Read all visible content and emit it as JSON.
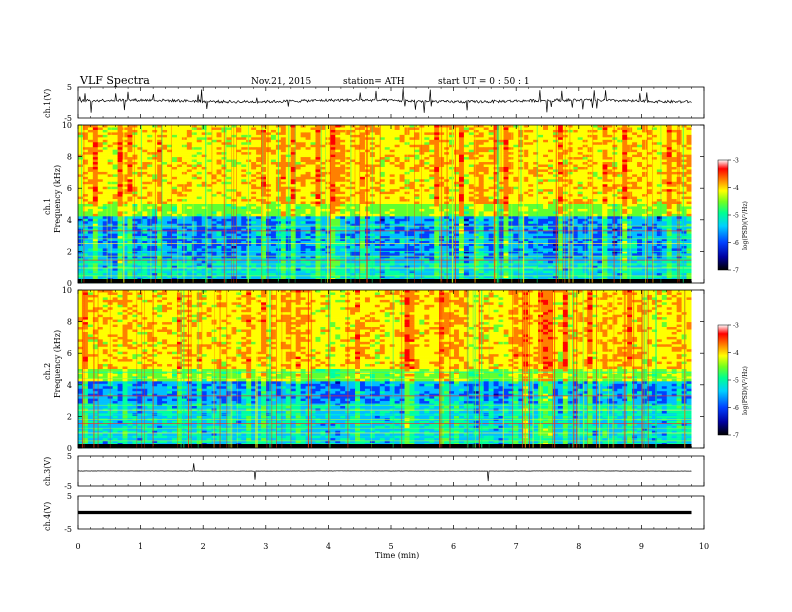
{
  "header": {
    "title": "VLF  Spectra",
    "date": "Nov.21, 2015",
    "station": "station= ATH",
    "start": "start  UT =   0 : 50 : 1"
  },
  "chart_data": [
    {
      "type": "line",
      "panel": "ch1-waveform",
      "ylabel": "ch.1(V)",
      "ylim": [
        -5,
        5
      ],
      "yticks": [
        "5",
        "-5"
      ],
      "x_range_min": [
        0,
        9.8
      ],
      "baseline_value": 0.5
    },
    {
      "type": "heatmap",
      "panel": "ch1-spectrogram",
      "ylabel": "ch.1",
      "ylabel2": "Frequency  (kHz)",
      "ylim": [
        0,
        10
      ],
      "yticks": [
        "0",
        "2",
        "4",
        "6",
        "8",
        "10"
      ],
      "colorbar": {
        "label": "log(PSD)(V²/Hz)",
        "ticks": [
          "-3",
          "-4",
          "-5",
          "-6",
          "-7"
        ],
        "range": [
          -7,
          -3
        ]
      }
    },
    {
      "type": "heatmap",
      "panel": "ch2-spectrogram",
      "ylabel": "ch.2",
      "ylabel2": "Frequency  (kHz)",
      "ylim": [
        0,
        10
      ],
      "yticks": [
        "0",
        "2",
        "4",
        "6",
        "8",
        "10"
      ],
      "colorbar": {
        "label": "log(PSD)(V²/Hz)",
        "ticks": [
          "-3",
          "-4",
          "-5",
          "-6",
          "-7"
        ],
        "range": [
          -7,
          -3
        ]
      }
    },
    {
      "type": "line",
      "panel": "ch3-waveform",
      "ylabel": "ch.3(V)",
      "ylim": [
        -5,
        5
      ],
      "yticks": [
        "5",
        "-5"
      ],
      "baseline_value": 0
    },
    {
      "type": "line",
      "panel": "ch4-waveform",
      "ylabel": "ch.4(V)",
      "ylim": [
        -5,
        5
      ],
      "yticks": [
        "5",
        "-5"
      ],
      "baseline_value": 0
    }
  ],
  "xaxis": {
    "label": "Time  (min)",
    "ticks": [
      "0",
      "1",
      "2",
      "3",
      "4",
      "5",
      "6",
      "7",
      "8",
      "9",
      "10"
    ],
    "range": [
      0,
      10
    ]
  },
  "colors": {
    "scale": [
      "#000000",
      "#0000a0",
      "#0040ff",
      "#00c0ff",
      "#00ffa0",
      "#60ff30",
      "#ffff00",
      "#ff8000",
      "#ff0000",
      "#ffffff"
    ]
  }
}
